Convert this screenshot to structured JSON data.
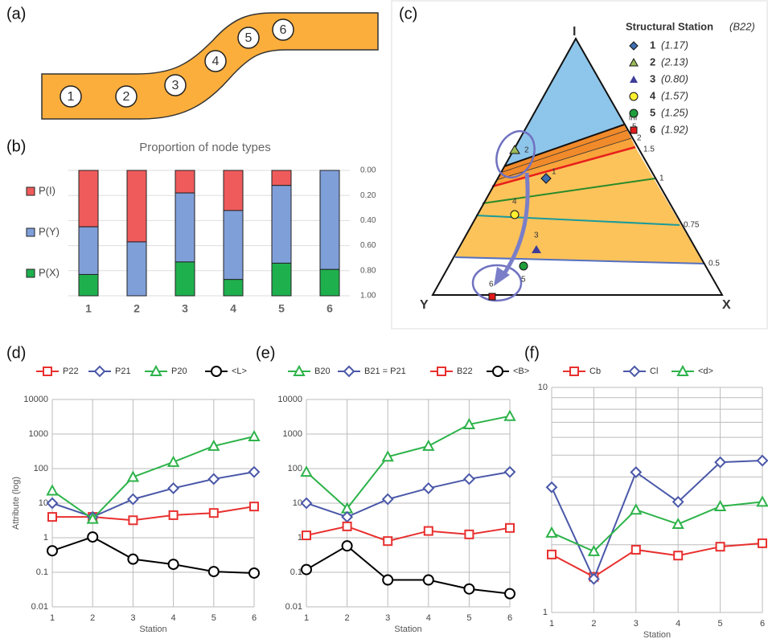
{
  "panel_a": {
    "label": "(a)",
    "stations": [
      "1",
      "2",
      "3",
      "4",
      "5",
      "6"
    ]
  },
  "panel_c": {
    "label": "(c)",
    "legend_title": "Structural Station",
    "legend_subtitle": "(B22)",
    "stations": [
      "1",
      "2",
      "3",
      "4",
      "5",
      "6"
    ],
    "b22": [
      "(1.17)",
      "(2.13)",
      "(0.80)",
      "(1.57)",
      "(1.25)",
      "(1.92)"
    ],
    "apexes": [
      "I",
      "Y",
      "X"
    ],
    "contours": [
      "inf",
      "5",
      "2",
      "1.5",
      "1",
      "0.75",
      "0.5"
    ]
  },
  "chart_data": [
    {
      "type": "stacked_bar",
      "panel_label": "(b)",
      "title": "Proportion of node types",
      "categories": [
        "1",
        "2",
        "3",
        "4",
        "5",
        "6"
      ],
      "y_inverted": true,
      "ylim": [
        0,
        1
      ],
      "yticks": [
        {
          "value": 0,
          "label": "0.00"
        },
        {
          "value": 0.2,
          "label": "0.20"
        },
        {
          "value": 0.4,
          "label": "0.40"
        },
        {
          "value": 0.6,
          "label": "0.60"
        },
        {
          "value": 0.8,
          "label": "0.80"
        },
        {
          "value": 1,
          "label": "1.00"
        }
      ],
      "series": [
        {
          "name": "P(I)",
          "color": "#ef5b5b",
          "values": [
            0.45,
            0.57,
            0.18,
            0.32,
            0.12,
            0
          ]
        },
        {
          "name": "P(Y)",
          "color": "#7f9fd9",
          "values": [
            0.38,
            0.43,
            0.55,
            0.55,
            0.62,
            0.79
          ]
        },
        {
          "name": "P(X)",
          "color": "#1fb04e",
          "values": [
            0.17,
            0,
            0.27,
            0.13,
            0.26,
            0.21
          ]
        }
      ]
    },
    {
      "type": "line",
      "panel_label": "(d)",
      "log_y": true,
      "grid": true,
      "xlabel": "Station",
      "ylabel": "Attribute (log)",
      "categories": [
        "1",
        "2",
        "3",
        "4",
        "5",
        "6"
      ],
      "ylim": [
        0.01,
        10000
      ],
      "yticks": [
        0.01,
        0.1,
        1,
        10,
        100,
        1000,
        10000
      ],
      "series": [
        {
          "name": "P22",
          "color": "#e8302f",
          "marker": "square",
          "values": [
            4,
            4,
            3.2,
            4.5,
            5.2,
            8
          ]
        },
        {
          "name": "P21",
          "color": "#4a58a8",
          "marker": "diamond",
          "values": [
            10,
            4,
            13,
            27,
            50,
            80
          ]
        },
        {
          "name": "P20",
          "color": "#2db34a",
          "marker": "triangle",
          "values": [
            23,
            3.5,
            57,
            155,
            450,
            850
          ]
        },
        {
          "name": "<L>",
          "color": "#000000",
          "marker": "circle",
          "values": [
            0.42,
            1.05,
            0.24,
            0.17,
            0.105,
            0.095
          ]
        }
      ]
    },
    {
      "type": "line",
      "panel_label": "(e)",
      "log_y": true,
      "grid": true,
      "xlabel": "Station",
      "categories": [
        "1",
        "2",
        "3",
        "4",
        "5",
        "6"
      ],
      "ylim": [
        0.01,
        10000
      ],
      "yticks": [
        0.01,
        0.1,
        1,
        10,
        100,
        1000,
        10000
      ],
      "series": [
        {
          "name": "B20",
          "color": "#2db34a",
          "marker": "triangle",
          "values": [
            80,
            7,
            220,
            450,
            1900,
            3300
          ]
        },
        {
          "name": "B21 = P21",
          "color": "#4a58a8",
          "marker": "diamond",
          "values": [
            10,
            4,
            13,
            27,
            50,
            80
          ]
        },
        {
          "name": "B22",
          "color": "#e8302f",
          "marker": "square",
          "values": [
            1.17,
            2.13,
            0.8,
            1.57,
            1.25,
            1.92
          ]
        },
        {
          "name": "<B>",
          "color": "#000000",
          "marker": "circle",
          "values": [
            0.12,
            0.58,
            0.06,
            0.06,
            0.033,
            0.024
          ]
        }
      ]
    },
    {
      "type": "line",
      "panel_label": "(f)",
      "log_y": true,
      "grid": true,
      "xlabel": "Station",
      "categories": [
        "1",
        "2",
        "3",
        "4",
        "5",
        "6"
      ],
      "ylim": [
        1,
        10
      ],
      "yticks": [
        1,
        10
      ],
      "minor_grid": [
        2,
        3,
        4,
        5,
        6,
        7,
        8,
        9
      ],
      "series": [
        {
          "name": "Cb",
          "color": "#e8302f",
          "marker": "square",
          "values": [
            1.81,
            1.44,
            1.9,
            1.79,
            1.96,
            2.03
          ]
        },
        {
          "name": "Cl",
          "color": "#4a58a8",
          "marker": "diamond",
          "values": [
            3.6,
            1.41,
            4.2,
            3.1,
            4.65,
            4.73
          ]
        },
        {
          "name": "<d>",
          "color": "#2db34a",
          "marker": "triangle",
          "values": [
            2.26,
            1.87,
            2.86,
            2.47,
            2.96,
            3.1
          ]
        }
      ]
    }
  ]
}
